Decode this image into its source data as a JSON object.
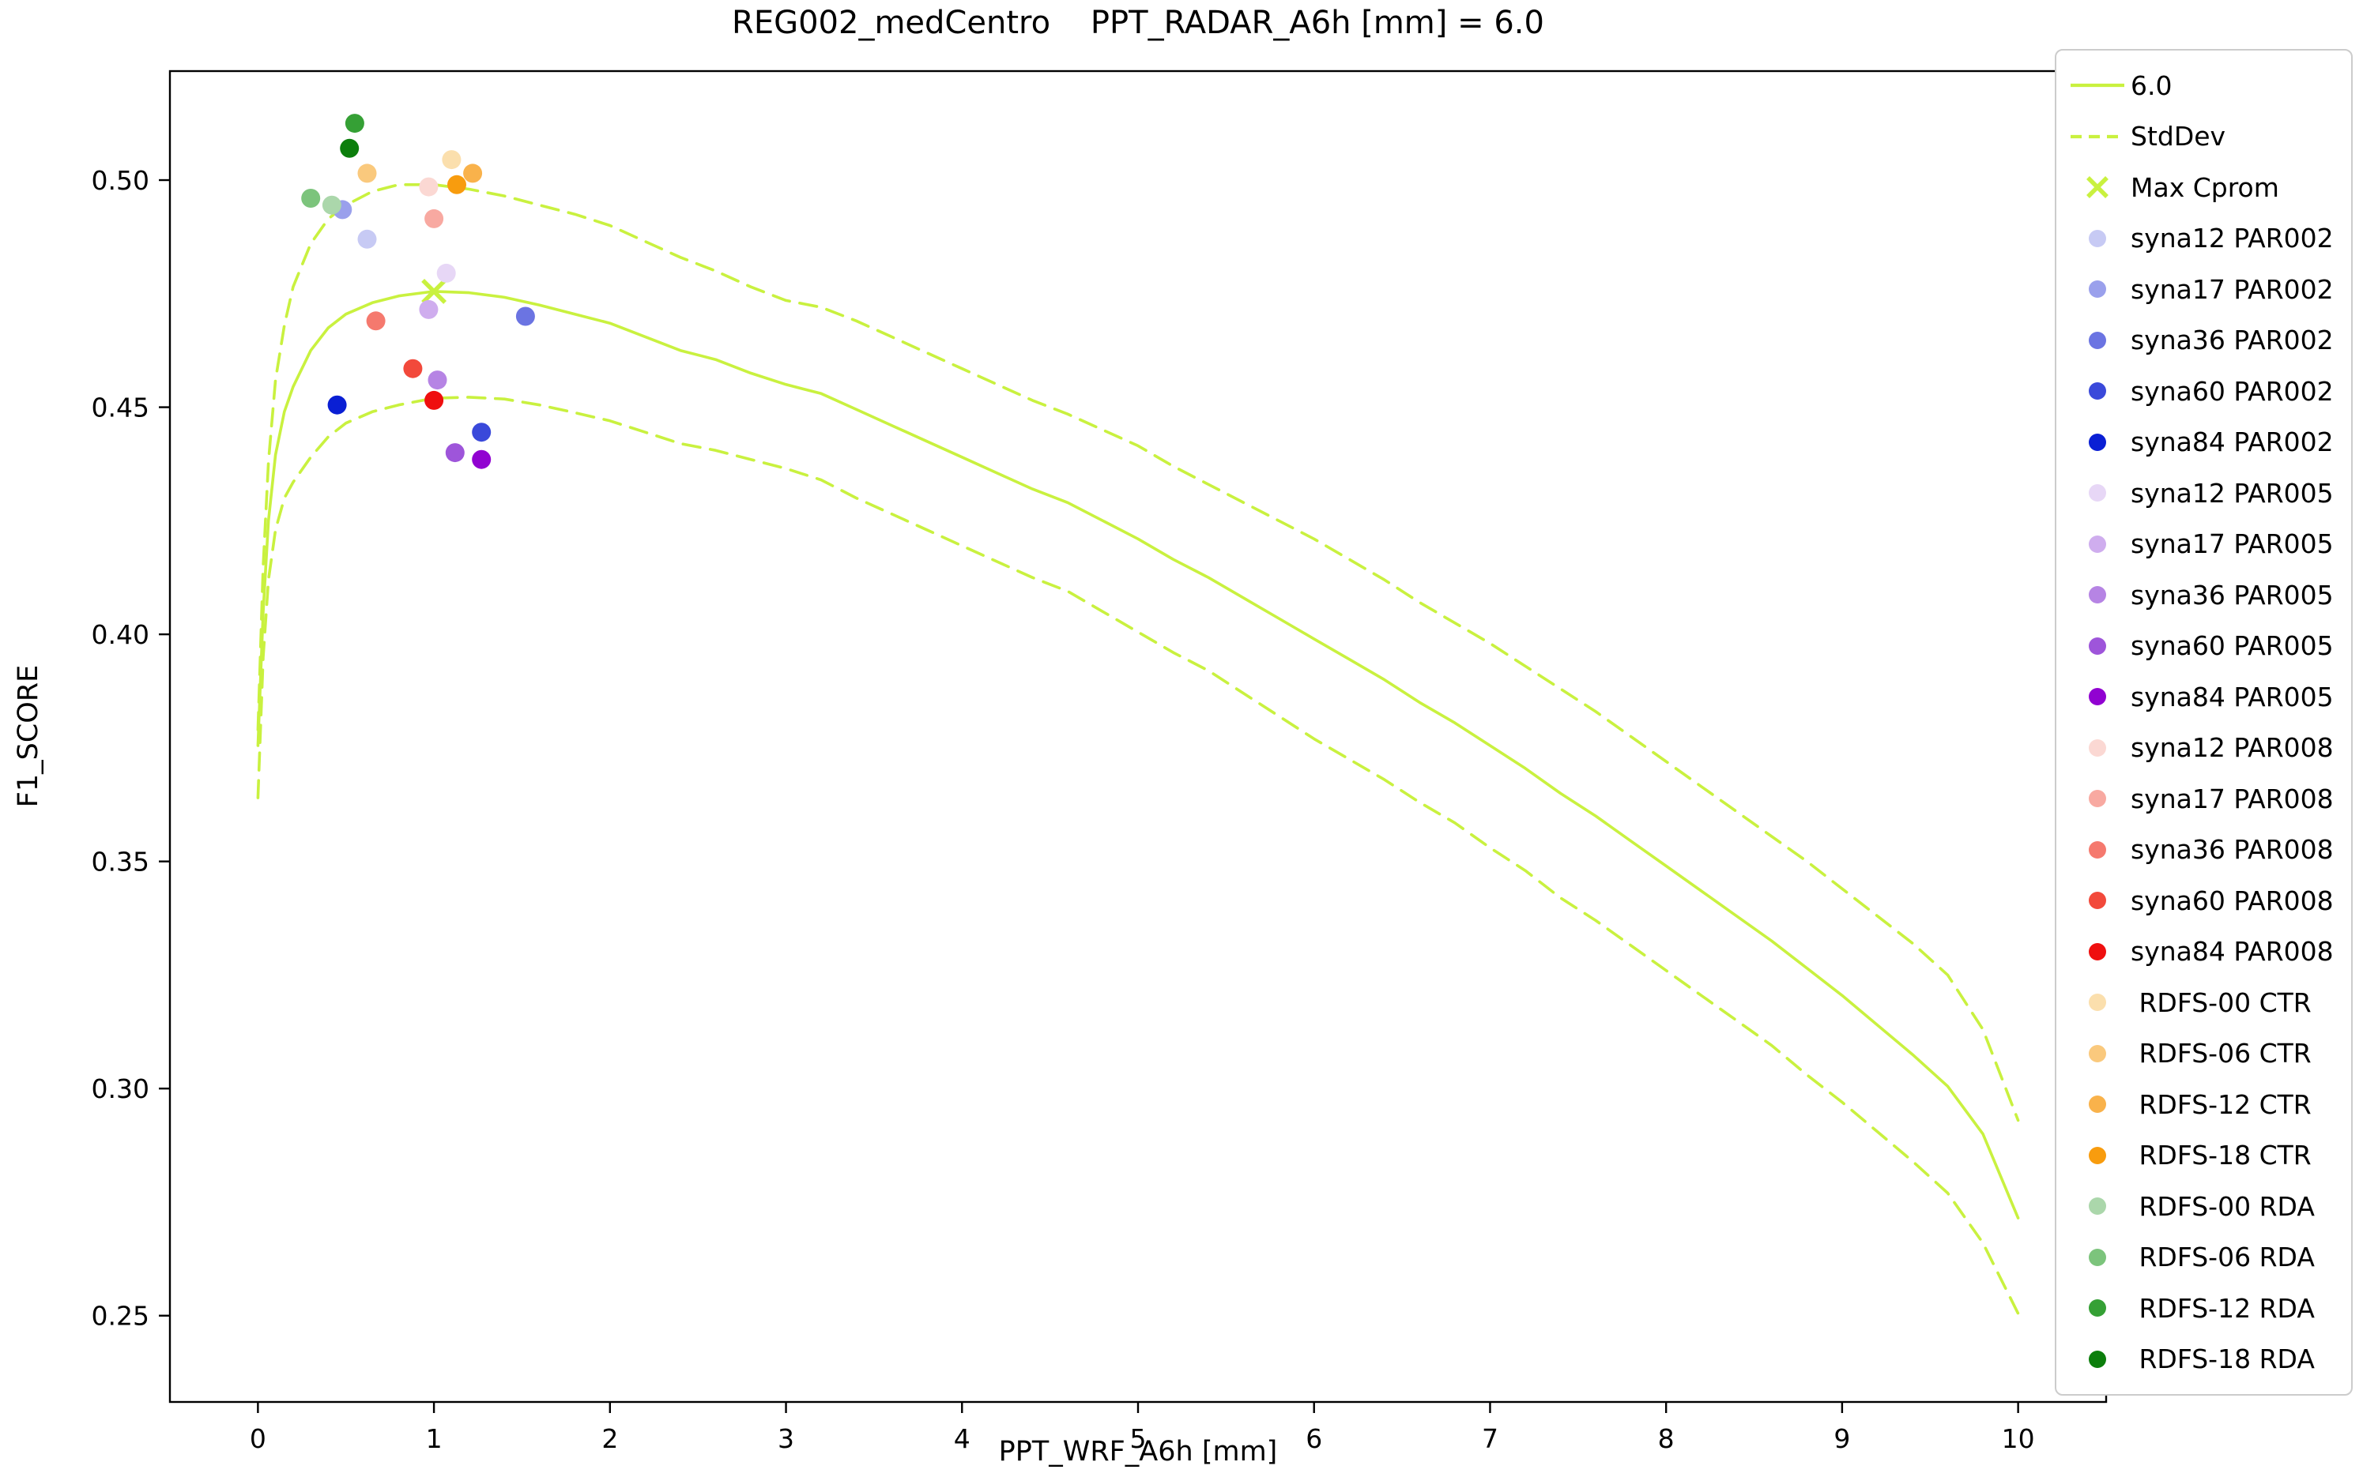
{
  "chart_data": {
    "type": "line",
    "title": "REG002_medCentro    PPT_RADAR_A6h [mm] = 6.0",
    "xlabel": "PPT_WRF_A6h [mm]",
    "ylabel": "F1_SCORE",
    "xlim": [
      -0.5,
      10.5
    ],
    "ylim": [
      0.231,
      0.524
    ],
    "xticks": [
      0,
      1,
      2,
      3,
      4,
      5,
      6,
      7,
      8,
      9,
      10
    ],
    "yticks": [
      0.25,
      0.3,
      0.35,
      0.4,
      0.45,
      0.5
    ],
    "grid": false,
    "legend_position": "outside-right",
    "line_color": "#c9f13f",
    "series": [
      {
        "name": "6.0",
        "type": "line",
        "style": "solid",
        "color": "#c9f13f",
        "points": [
          [
            0.0,
            0.3755
          ],
          [
            0.03,
            0.405
          ],
          [
            0.06,
            0.425
          ],
          [
            0.1,
            0.4395
          ],
          [
            0.15,
            0.449
          ],
          [
            0.2,
            0.4545
          ],
          [
            0.3,
            0.4625
          ],
          [
            0.4,
            0.4675
          ],
          [
            0.5,
            0.4705
          ],
          [
            0.65,
            0.473
          ],
          [
            0.8,
            0.4745
          ],
          [
            1.0,
            0.4755
          ],
          [
            1.2,
            0.4752
          ],
          [
            1.4,
            0.4742
          ],
          [
            1.6,
            0.4725
          ],
          [
            1.8,
            0.4705
          ],
          [
            2.0,
            0.4685
          ],
          [
            2.2,
            0.4655
          ],
          [
            2.4,
            0.4625
          ],
          [
            2.6,
            0.4605
          ],
          [
            2.8,
            0.4575
          ],
          [
            3.0,
            0.455
          ],
          [
            3.2,
            0.453
          ],
          [
            3.4,
            0.4495
          ],
          [
            3.6,
            0.446
          ],
          [
            3.8,
            0.4425
          ],
          [
            4.0,
            0.439
          ],
          [
            4.2,
            0.4355
          ],
          [
            4.4,
            0.432
          ],
          [
            4.6,
            0.429
          ],
          [
            4.8,
            0.425
          ],
          [
            5.0,
            0.421
          ],
          [
            5.2,
            0.4165
          ],
          [
            5.4,
            0.4125
          ],
          [
            5.6,
            0.408
          ],
          [
            5.8,
            0.4035
          ],
          [
            6.0,
            0.399
          ],
          [
            6.2,
            0.3945
          ],
          [
            6.4,
            0.39
          ],
          [
            6.6,
            0.385
          ],
          [
            6.8,
            0.3805
          ],
          [
            7.0,
            0.3755
          ],
          [
            7.2,
            0.3705
          ],
          [
            7.4,
            0.365
          ],
          [
            7.6,
            0.36
          ],
          [
            7.8,
            0.3545
          ],
          [
            8.0,
            0.349
          ],
          [
            8.2,
            0.3435
          ],
          [
            8.4,
            0.338
          ],
          [
            8.6,
            0.3325
          ],
          [
            8.8,
            0.3265
          ],
          [
            9.0,
            0.3205
          ],
          [
            9.2,
            0.314
          ],
          [
            9.4,
            0.3075
          ],
          [
            9.6,
            0.3005
          ],
          [
            9.8,
            0.29
          ],
          [
            10.0,
            0.2715
          ]
        ]
      },
      {
        "name": "StdDev",
        "type": "line",
        "style": "dashed",
        "color": "#c9f13f",
        "points": [
          [
            0.0,
            0.379
          ],
          [
            0.03,
            0.415
          ],
          [
            0.06,
            0.438
          ],
          [
            0.1,
            0.456
          ],
          [
            0.15,
            0.468
          ],
          [
            0.2,
            0.4765
          ],
          [
            0.3,
            0.486
          ],
          [
            0.4,
            0.4915
          ],
          [
            0.5,
            0.4945
          ],
          [
            0.65,
            0.4975
          ],
          [
            0.8,
            0.499
          ],
          [
            1.0,
            0.499
          ],
          [
            1.2,
            0.498
          ],
          [
            1.4,
            0.4965
          ],
          [
            1.6,
            0.4945
          ],
          [
            1.8,
            0.4925
          ],
          [
            2.0,
            0.49
          ],
          [
            2.2,
            0.4865
          ],
          [
            2.4,
            0.483
          ],
          [
            2.6,
            0.48
          ],
          [
            2.8,
            0.4765
          ],
          [
            3.0,
            0.4735
          ],
          [
            3.2,
            0.472
          ],
          [
            3.4,
            0.469
          ],
          [
            3.6,
            0.4655
          ],
          [
            3.8,
            0.462
          ],
          [
            4.0,
            0.4585
          ],
          [
            4.2,
            0.455
          ],
          [
            4.4,
            0.4515
          ],
          [
            4.6,
            0.4485
          ],
          [
            4.8,
            0.445
          ],
          [
            5.0,
            0.4415
          ],
          [
            5.2,
            0.437
          ],
          [
            5.4,
            0.433
          ],
          [
            5.6,
            0.429
          ],
          [
            5.8,
            0.425
          ],
          [
            6.0,
            0.421
          ],
          [
            6.2,
            0.4165
          ],
          [
            6.4,
            0.412
          ],
          [
            6.6,
            0.407
          ],
          [
            6.8,
            0.4025
          ],
          [
            7.0,
            0.398
          ],
          [
            7.2,
            0.393
          ],
          [
            7.4,
            0.388
          ],
          [
            7.6,
            0.383
          ],
          [
            7.8,
            0.3775
          ],
          [
            8.0,
            0.372
          ],
          [
            8.2,
            0.3665
          ],
          [
            8.4,
            0.361
          ],
          [
            8.6,
            0.3555
          ],
          [
            8.8,
            0.35
          ],
          [
            9.0,
            0.344
          ],
          [
            9.2,
            0.338
          ],
          [
            9.4,
            0.332
          ],
          [
            9.6,
            0.325
          ],
          [
            9.8,
            0.313
          ],
          [
            10.0,
            0.293
          ]
        ]
      },
      {
        "name": "StdDev-lower",
        "type": "line",
        "style": "dashed",
        "color": "#c9f13f",
        "points": [
          [
            0.0,
            0.364
          ],
          [
            0.03,
            0.395
          ],
          [
            0.06,
            0.412
          ],
          [
            0.1,
            0.423
          ],
          [
            0.15,
            0.43
          ],
          [
            0.2,
            0.4335
          ],
          [
            0.3,
            0.439
          ],
          [
            0.4,
            0.4435
          ],
          [
            0.5,
            0.4465
          ],
          [
            0.65,
            0.449
          ],
          [
            0.8,
            0.4505
          ],
          [
            1.0,
            0.452
          ],
          [
            1.2,
            0.4522
          ],
          [
            1.4,
            0.4518
          ],
          [
            1.6,
            0.4505
          ],
          [
            1.8,
            0.4488
          ],
          [
            2.0,
            0.447
          ],
          [
            2.2,
            0.4445
          ],
          [
            2.4,
            0.442
          ],
          [
            2.6,
            0.4405
          ],
          [
            2.8,
            0.4385
          ],
          [
            3.0,
            0.4365
          ],
          [
            3.2,
            0.434
          ],
          [
            3.4,
            0.43
          ],
          [
            3.6,
            0.4265
          ],
          [
            3.8,
            0.423
          ],
          [
            4.0,
            0.4195
          ],
          [
            4.2,
            0.416
          ],
          [
            4.4,
            0.4125
          ],
          [
            4.6,
            0.4095
          ],
          [
            4.8,
            0.405
          ],
          [
            5.0,
            0.4005
          ],
          [
            5.2,
            0.396
          ],
          [
            5.4,
            0.392
          ],
          [
            5.6,
            0.387
          ],
          [
            5.8,
            0.382
          ],
          [
            6.0,
            0.377
          ],
          [
            6.2,
            0.3725
          ],
          [
            6.4,
            0.368
          ],
          [
            6.6,
            0.363
          ],
          [
            6.8,
            0.3585
          ],
          [
            7.0,
            0.353
          ],
          [
            7.2,
            0.348
          ],
          [
            7.4,
            0.342
          ],
          [
            7.6,
            0.337
          ],
          [
            7.8,
            0.3315
          ],
          [
            8.0,
            0.326
          ],
          [
            8.2,
            0.3205
          ],
          [
            8.4,
            0.315
          ],
          [
            8.6,
            0.3095
          ],
          [
            8.8,
            0.303
          ],
          [
            9.0,
            0.297
          ],
          [
            9.2,
            0.2905
          ],
          [
            9.4,
            0.284
          ],
          [
            9.6,
            0.277
          ],
          [
            9.8,
            0.266
          ],
          [
            10.0,
            0.2505
          ]
        ]
      },
      {
        "name": "Max Cprom",
        "type": "marker-x",
        "color": "#c9f13f",
        "point": [
          1.0,
          0.4755
        ]
      }
    ],
    "scatter": [
      {
        "name": "syna12 PAR002",
        "color": "#c7caf4",
        "point": [
          0.62,
          0.487
        ]
      },
      {
        "name": "syna17 PAR002",
        "color": "#9aa0ec",
        "point": [
          0.48,
          0.4935
        ]
      },
      {
        "name": "syna36 PAR002",
        "color": "#6b74e2",
        "point": [
          1.52,
          0.47
        ]
      },
      {
        "name": "syna60 PAR002",
        "color": "#3a49da",
        "point": [
          1.27,
          0.4445
        ]
      },
      {
        "name": "syna84 PAR002",
        "color": "#0a1fd4",
        "point": [
          0.45,
          0.4505
        ]
      },
      {
        "name": "syna12 PAR005",
        "color": "#e7d7f6",
        "point": [
          1.07,
          0.4795
        ]
      },
      {
        "name": "syna17 PAR005",
        "color": "#cfadee",
        "point": [
          0.97,
          0.4715
        ]
      },
      {
        "name": "syna36 PAR005",
        "color": "#b684e4",
        "point": [
          1.02,
          0.456
        ]
      },
      {
        "name": "syna60 PAR005",
        "color": "#9e55da",
        "point": [
          1.12,
          0.44
        ]
      },
      {
        "name": "syna84 PAR005",
        "color": "#9102d1",
        "point": [
          1.27,
          0.4385
        ]
      },
      {
        "name": "syna12 PAR008",
        "color": "#fbd8d3",
        "point": [
          0.97,
          0.4985
        ]
      },
      {
        "name": "syna17 PAR008",
        "color": "#f8a9a1",
        "point": [
          1.0,
          0.4915
        ]
      },
      {
        "name": "syna36 PAR008",
        "color": "#f5796e",
        "point": [
          0.67,
          0.469
        ]
      },
      {
        "name": "syna60 PAR008",
        "color": "#f2493b",
        "point": [
          0.88,
          0.4585
        ]
      },
      {
        "name": "syna84 PAR008",
        "color": "#ef0f0f",
        "point": [
          1.0,
          0.4515
        ]
      },
      {
        "name": "RDFS-00 CTR",
        "color": "#fbdfad",
        "point": [
          1.1,
          0.5045
        ]
      },
      {
        "name": "RDFS-06 CTR",
        "color": "#fac97d",
        "point": [
          0.62,
          0.5015
        ]
      },
      {
        "name": "RDFS-12 CTR",
        "color": "#f9b24b",
        "point": [
          1.22,
          0.5015
        ]
      },
      {
        "name": "RDFS-18 CTR",
        "color": "#f89c0e",
        "point": [
          1.13,
          0.499
        ]
      },
      {
        "name": "RDFS-00 RDA",
        "color": "#abd7ab",
        "point": [
          0.42,
          0.4945
        ]
      },
      {
        "name": "RDFS-06 RDA",
        "color": "#7cc47c",
        "point": [
          0.3,
          0.496
        ]
      },
      {
        "name": "RDFS-12 RDA",
        "color": "#35a035",
        "point": [
          0.55,
          0.5125
        ]
      },
      {
        "name": "RDFS-18 RDA",
        "color": "#0c7e0c",
        "point": [
          0.52,
          0.507
        ]
      }
    ]
  },
  "legend": {
    "entries": [
      {
        "label": "6.0",
        "marker": "line-solid",
        "color": "#c9f13f"
      },
      {
        "label": "StdDev",
        "marker": "line-dashed",
        "color": "#c9f13f"
      },
      {
        "label": "Max Cprom",
        "marker": "x",
        "color": "#c9f13f"
      },
      {
        "label": "syna12 PAR002",
        "marker": "dot",
        "color": "#c7caf4"
      },
      {
        "label": "syna17 PAR002",
        "marker": "dot",
        "color": "#9aa0ec"
      },
      {
        "label": "syna36 PAR002",
        "marker": "dot",
        "color": "#6b74e2"
      },
      {
        "label": "syna60 PAR002",
        "marker": "dot",
        "color": "#3a49da"
      },
      {
        "label": "syna84 PAR002",
        "marker": "dot",
        "color": "#0a1fd4"
      },
      {
        "label": "syna12 PAR005",
        "marker": "dot",
        "color": "#e7d7f6"
      },
      {
        "label": "syna17 PAR005",
        "marker": "dot",
        "color": "#cfadee"
      },
      {
        "label": "syna36 PAR005",
        "marker": "dot",
        "color": "#b684e4"
      },
      {
        "label": "syna60 PAR005",
        "marker": "dot",
        "color": "#9e55da"
      },
      {
        "label": "syna84 PAR005",
        "marker": "dot",
        "color": "#9102d1"
      },
      {
        "label": "syna12 PAR008",
        "marker": "dot",
        "color": "#fbd8d3"
      },
      {
        "label": "syna17 PAR008",
        "marker": "dot",
        "color": "#f8a9a1"
      },
      {
        "label": "syna36 PAR008",
        "marker": "dot",
        "color": "#f5796e"
      },
      {
        "label": "syna60 PAR008",
        "marker": "dot",
        "color": "#f2493b"
      },
      {
        "label": "syna84 PAR008",
        "marker": "dot",
        "color": "#ef0f0f"
      },
      {
        "label": " RDFS-00 CTR",
        "marker": "dot",
        "color": "#fbdfad"
      },
      {
        "label": " RDFS-06 CTR",
        "marker": "dot",
        "color": "#fac97d"
      },
      {
        "label": " RDFS-12 CTR",
        "marker": "dot",
        "color": "#f9b24b"
      },
      {
        "label": " RDFS-18 CTR",
        "marker": "dot",
        "color": "#f89c0e"
      },
      {
        "label": " RDFS-00 RDA",
        "marker": "dot",
        "color": "#abd7ab"
      },
      {
        "label": " RDFS-06 RDA",
        "marker": "dot",
        "color": "#7cc47c"
      },
      {
        "label": " RDFS-12 RDA",
        "marker": "dot",
        "color": "#35a035"
      },
      {
        "label": " RDFS-18 RDA",
        "marker": "dot",
        "color": "#0c7e0c"
      }
    ]
  }
}
